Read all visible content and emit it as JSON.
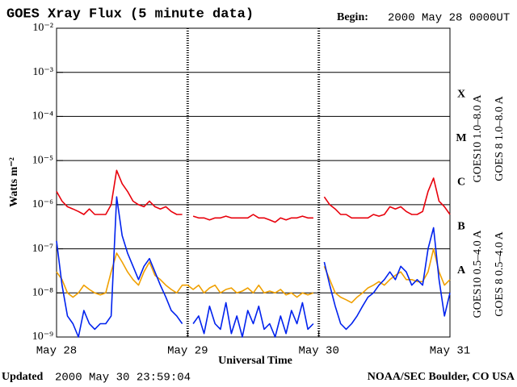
{
  "chart_data": {
    "type": "line",
    "title": "GOES Xray Flux (5 minute data)",
    "begin_label": "Begin:",
    "begin_value": "2000 May 28 0000UT",
    "xlabel": "Universal Time",
    "ylabel": "Watts m⁻²",
    "footer_label": "Updated",
    "footer_value": "2000 May 30 23:59:04",
    "credit": "NOAA/SEC Boulder, CO USA",
    "log_y": true,
    "grid": true,
    "xlim": [
      0,
      72
    ],
    "xticks": [
      {
        "value": 0,
        "label": "May 28"
      },
      {
        "value": 24,
        "label": "May 29"
      },
      {
        "value": 48,
        "label": "May 30"
      },
      {
        "value": 72,
        "label": "May 31"
      }
    ],
    "ylim": [
      1e-09,
      0.01
    ],
    "yticks": [
      {
        "value": 1e-09,
        "label": "10⁻⁹"
      },
      {
        "value": 1e-08,
        "label": "10⁻⁸"
      },
      {
        "value": 1e-07,
        "label": "10⁻⁷"
      },
      {
        "value": 1e-06,
        "label": "10⁻⁶"
      },
      {
        "value": 1e-05,
        "label": "10⁻⁵"
      },
      {
        "value": 0.0001,
        "label": "10⁻⁴"
      },
      {
        "value": 0.001,
        "label": "10⁻³"
      },
      {
        "value": 0.01,
        "label": "10⁻²"
      }
    ],
    "flare_classes": [
      {
        "label": "A",
        "value": 1e-08
      },
      {
        "label": "B",
        "value": 1e-07
      },
      {
        "label": "C",
        "value": 1e-06
      },
      {
        "label": "M",
        "value": 1e-05
      },
      {
        "label": "X",
        "value": 0.0001
      }
    ],
    "x": [
      0,
      1,
      2,
      3,
      4,
      5,
      6,
      7,
      8,
      9,
      10,
      11,
      12,
      13,
      14,
      15,
      16,
      17,
      18,
      19,
      20,
      21,
      22,
      23,
      24,
      25,
      26,
      27,
      28,
      29,
      30,
      31,
      32,
      33,
      34,
      35,
      36,
      37,
      38,
      39,
      40,
      41,
      42,
      43,
      44,
      45,
      46,
      47,
      48,
      49,
      50,
      51,
      52,
      53,
      54,
      55,
      56,
      57,
      58,
      59,
      60,
      61,
      62,
      63,
      64,
      65,
      66,
      67,
      68,
      69,
      70,
      71,
      72
    ],
    "series": [
      {
        "name": "GOES10 1.0–8.0 A",
        "color": "#7b2fa0",
        "values": [
          null,
          null,
          null,
          null,
          null,
          null,
          null,
          null,
          null,
          null,
          null,
          null,
          null,
          null,
          null,
          null,
          null,
          null,
          null,
          null,
          null,
          null,
          null,
          null,
          null,
          null,
          null,
          null,
          null,
          null,
          null,
          null,
          null,
          null,
          null,
          null,
          null,
          null,
          null,
          null,
          null,
          null,
          null,
          null,
          null,
          null,
          null,
          null,
          null,
          null,
          null,
          null,
          null,
          null,
          null,
          null,
          null,
          null,
          null,
          null,
          null,
          null,
          null,
          null,
          null,
          null,
          null,
          null,
          null,
          null,
          null,
          null,
          null
        ]
      },
      {
        "name": "GOES 8 1.0–8.0 A",
        "color": "#e8000b",
        "values": [
          2e-06,
          1.2e-06,
          9e-07,
          8e-07,
          7e-07,
          6e-07,
          8e-07,
          6e-07,
          6e-07,
          6e-07,
          1e-06,
          6e-06,
          3e-06,
          2e-06,
          1.2e-06,
          1e-06,
          9e-07,
          1.2e-06,
          9e-07,
          8e-07,
          9e-07,
          7e-07,
          6e-07,
          6e-07,
          null,
          5.5e-07,
          5e-07,
          5e-07,
          4.5e-07,
          5e-07,
          5e-07,
          5.5e-07,
          5e-07,
          5e-07,
          5e-07,
          5e-07,
          6e-07,
          5e-07,
          5e-07,
          4.5e-07,
          4e-07,
          5e-07,
          4.5e-07,
          5e-07,
          5e-07,
          5.5e-07,
          5e-07,
          5e-07,
          null,
          1.5e-06,
          1e-06,
          8e-07,
          6e-07,
          6e-07,
          5e-07,
          5e-07,
          5e-07,
          5e-07,
          6e-07,
          5.5e-07,
          6e-07,
          9e-07,
          8e-07,
          9e-07,
          7e-07,
          6e-07,
          6e-07,
          7e-07,
          2e-06,
          4e-06,
          1.2e-06,
          9e-07,
          6e-07
        ]
      },
      {
        "name": "GOES10 0.5–4.0 A",
        "color": "#f0a000",
        "values": [
          3e-08,
          2e-08,
          1e-08,
          8e-09,
          1e-08,
          1.5e-08,
          1.2e-08,
          1e-08,
          9e-09,
          1e-08,
          3e-08,
          8e-08,
          5e-08,
          3e-08,
          2e-08,
          1.5e-08,
          3e-08,
          5e-08,
          2.5e-08,
          2e-08,
          1.5e-08,
          1.2e-08,
          1e-08,
          1.5e-08,
          1.5e-08,
          1.2e-08,
          1.5e-08,
          1e-08,
          1.3e-08,
          1.5e-08,
          1e-08,
          1.2e-08,
          1.3e-08,
          1e-08,
          1.1e-08,
          1.3e-08,
          1e-08,
          1.5e-08,
          1e-08,
          1.1e-08,
          1e-08,
          1.2e-08,
          9e-09,
          1e-08,
          8e-09,
          1e-08,
          9e-09,
          1e-08,
          null,
          4e-08,
          2e-08,
          1e-08,
          8e-09,
          7e-09,
          6e-09,
          8e-09,
          1e-08,
          1.3e-08,
          1.5e-08,
          1.8e-08,
          1.5e-08,
          2e-08,
          2.5e-08,
          3e-08,
          2e-08,
          2e-08,
          1.8e-08,
          1.8e-08,
          3e-08,
          1e-07,
          3e-08,
          1.5e-08,
          2e-08
        ]
      },
      {
        "name": "GOES 8 0.5–4.0 A",
        "color": "#0022ee",
        "values": [
          1.5e-07,
          1.5e-08,
          3e-09,
          2e-09,
          1e-09,
          4e-09,
          2e-09,
          1.5e-09,
          2e-09,
          2e-09,
          3e-09,
          1.5e-06,
          2e-07,
          8e-08,
          4e-08,
          2e-08,
          4e-08,
          6e-08,
          3e-08,
          1.5e-08,
          8e-09,
          4e-09,
          3e-09,
          2e-09,
          null,
          2e-09,
          3e-09,
          1.2e-09,
          5e-09,
          2e-09,
          1.5e-09,
          6e-09,
          1.2e-09,
          3e-09,
          1e-09,
          4e-09,
          2e-09,
          5e-09,
          1.5e-09,
          2e-09,
          1e-09,
          3e-09,
          1.2e-09,
          4e-09,
          2e-09,
          6e-09,
          1.5e-09,
          2e-09,
          null,
          5e-08,
          1.5e-08,
          5e-09,
          2e-09,
          1.5e-09,
          2e-09,
          3e-09,
          5e-09,
          8e-09,
          1e-08,
          1.5e-08,
          2e-08,
          3e-08,
          2e-08,
          4e-08,
          3e-08,
          1.5e-08,
          2e-08,
          1.5e-08,
          1e-07,
          3e-07,
          2e-08,
          3e-09,
          1e-08
        ]
      }
    ]
  }
}
